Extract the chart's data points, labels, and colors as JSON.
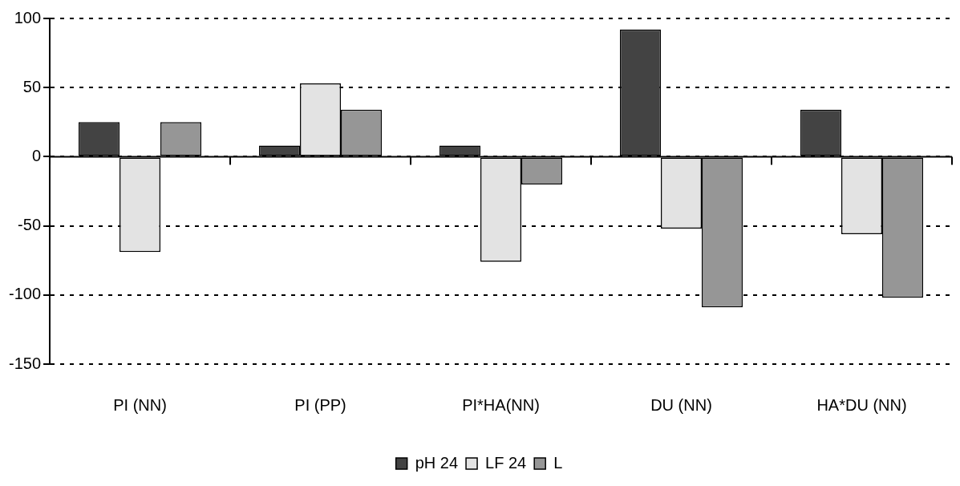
{
  "chart_data": {
    "type": "bar",
    "categories": [
      "PI (NN)",
      "PI (PP)",
      "PI*HA(NN)",
      "DU (NN)",
      "HA*DU (NN)"
    ],
    "series": [
      {
        "name": "pH 24",
        "color": "#434343",
        "values": [
          25,
          8,
          8,
          92,
          34
        ]
      },
      {
        "name": "LF 24",
        "color": "#e3e3e3",
        "values": [
          -69,
          53,
          -76,
          -52,
          -56
        ]
      },
      {
        "name": "L",
        "color": "#969696",
        "values": [
          25,
          34,
          -20,
          -109,
          -102
        ]
      }
    ],
    "ylim": [
      -150,
      100
    ],
    "yticks": [
      -150,
      -100,
      -50,
      0,
      50,
      100
    ],
    "grid": "y",
    "legend": "bottom"
  }
}
